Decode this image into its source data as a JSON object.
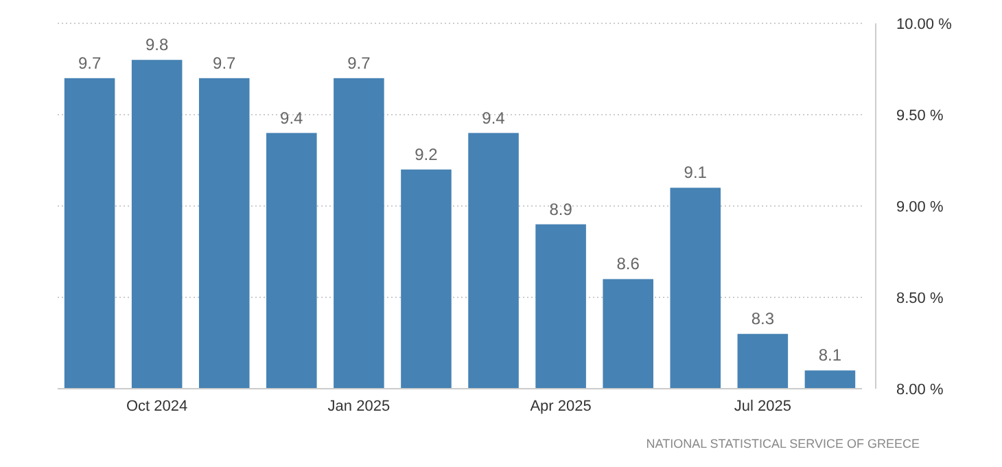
{
  "chart_data": {
    "type": "bar",
    "categories": [
      null,
      "Oct 2024",
      null,
      null,
      "Jan 2025",
      null,
      null,
      "Apr 2025",
      null,
      null,
      "Jul 2025",
      null
    ],
    "values": [
      9.7,
      9.8,
      9.7,
      9.4,
      9.7,
      9.2,
      9.4,
      8.9,
      8.6,
      9.1,
      8.3,
      8.1
    ],
    "color": "#4682b4",
    "data_labels": true,
    "ylim": [
      8,
      10
    ],
    "yticks": [
      {
        "value": 8,
        "label": "8.00 %"
      },
      {
        "value": 8.5,
        "label": "8.50 %"
      },
      {
        "value": 9,
        "label": "9.00 %"
      },
      {
        "value": 9.5,
        "label": "9.50 %"
      },
      {
        "value": 10,
        "label": "10.00 %"
      }
    ],
    "grid": "y",
    "annotations": [
      "NATIONAL STATISTICAL SERVICE OF GREECE"
    ]
  }
}
